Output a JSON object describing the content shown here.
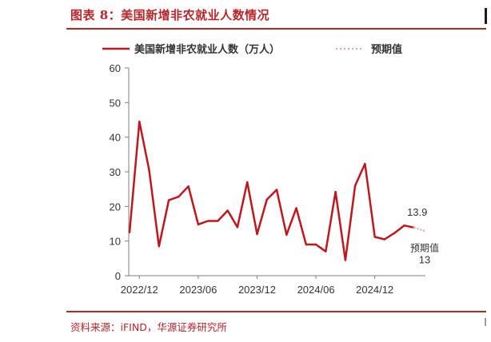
{
  "header": {
    "title": "图表 8：美国新增非农就业人数情况"
  },
  "footer": {
    "source": "资料来源：iFIND，华源证券研究所"
  },
  "chart_data": {
    "type": "line",
    "title": "",
    "xlabel": "",
    "ylabel": "",
    "ylim": [
      0,
      60
    ],
    "yticks": [
      0,
      10,
      20,
      30,
      40,
      50,
      60
    ],
    "xtick_labels": [
      "2022/12",
      "2023/06",
      "2023/12",
      "2024/06",
      "2024/12"
    ],
    "legend_position": "top",
    "grid": false,
    "x": [
      "2022/11",
      "2022/12",
      "2023/01",
      "2023/02",
      "2023/03",
      "2023/04",
      "2023/05",
      "2023/06",
      "2023/07",
      "2023/08",
      "2023/09",
      "2023/10",
      "2023/11",
      "2023/12",
      "2024/01",
      "2024/02",
      "2024/03",
      "2024/04",
      "2024/05",
      "2024/06",
      "2024/07",
      "2024/08",
      "2024/09",
      "2024/10",
      "2024/11",
      "2024/12",
      "2025/01",
      "2025/02",
      "2025/03",
      "2025/04",
      "2025/05"
    ],
    "series": [
      {
        "name": "美国新增非农就业人数（万人）",
        "color": "#c0161d",
        "style": "solid",
        "values": [
          12.5,
          44.5,
          30.5,
          8.5,
          21.8,
          22.8,
          25.8,
          14.8,
          15.8,
          15.8,
          18.8,
          14.0,
          27.0,
          12.0,
          22.0,
          24.8,
          11.8,
          19.5,
          9.0,
          9.0,
          7.0,
          24.2,
          4.5,
          26.0,
          32.3,
          11.2,
          10.5,
          12.3,
          14.5,
          13.9,
          null
        ]
      },
      {
        "name": "预期值",
        "color": "#e6a3a3",
        "style": "dotted",
        "values": [
          null,
          null,
          null,
          null,
          null,
          null,
          null,
          null,
          null,
          null,
          null,
          null,
          null,
          null,
          null,
          null,
          null,
          null,
          null,
          null,
          null,
          null,
          null,
          null,
          null,
          null,
          null,
          null,
          null,
          13.9,
          13.0
        ]
      }
    ],
    "annotations": [
      {
        "text": "13.9",
        "series": "美国新增非农就业人数（万人）",
        "point": "2025/04"
      },
      {
        "text": "预期值",
        "series": "预期值",
        "point": "2025/05"
      },
      {
        "text": "13",
        "series": "预期值",
        "point": "2025/05"
      }
    ]
  }
}
